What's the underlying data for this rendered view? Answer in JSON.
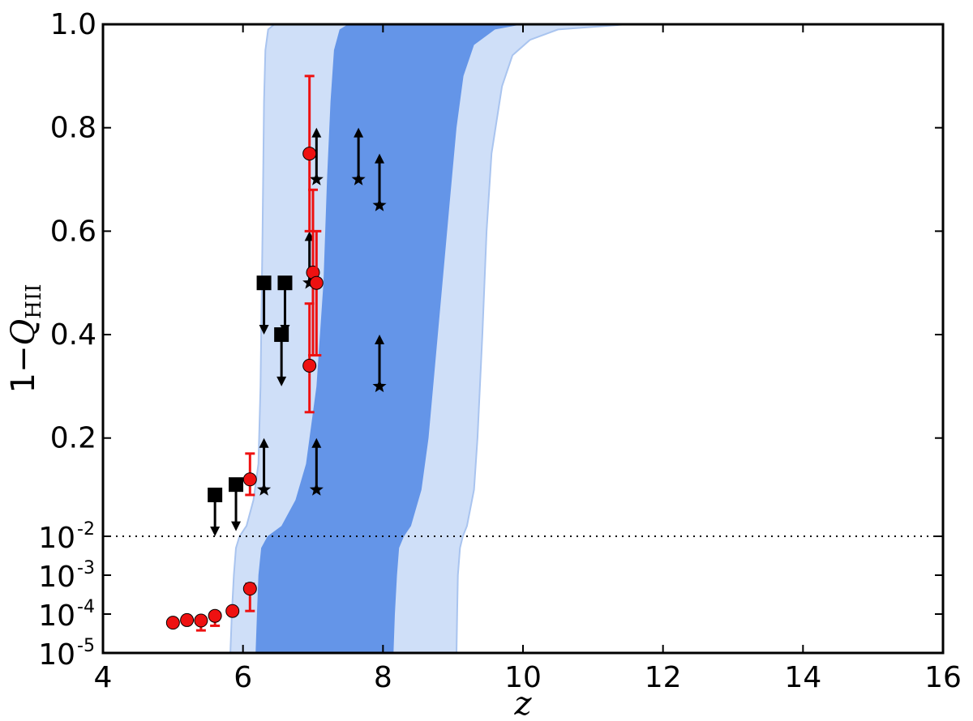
{
  "chart_data": {
    "type": "scatter",
    "xlabel": "z",
    "ylabel": {
      "prefix": "1−",
      "var": "Q",
      "sub": "HII"
    },
    "xlim": [
      4,
      16
    ],
    "upper_ylim": [
      0.01,
      1.0
    ],
    "lower_ylim_log": [
      -5,
      -2
    ],
    "x_ticks": [
      4,
      6,
      8,
      10,
      12,
      14,
      16
    ],
    "y_ticks_linear": [
      0.2,
      0.4,
      0.6,
      0.8,
      1.0
    ],
    "y_ticks_linear_labels": [
      "0.2",
      "0.4",
      "0.6",
      "0.8",
      "1.0"
    ],
    "y_ticks_log": [
      {
        "value": -2,
        "base": "10",
        "exp": "-2"
      },
      {
        "value": -3,
        "base": "10",
        "exp": "-3"
      },
      {
        "value": -4,
        "base": "10",
        "exp": "-4"
      },
      {
        "value": -5,
        "base": "10",
        "exp": "-5"
      }
    ],
    "threshold_line": {
      "y": 0.01,
      "style": "dotted"
    },
    "bands": {
      "light": {
        "color": "#cfdff8",
        "edge_color": "#a9c4ef",
        "left_edge": [
          [
            5.82,
            1e-05
          ],
          [
            5.84,
            0.0001
          ],
          [
            5.87,
            0.001
          ],
          [
            5.9,
            0.005
          ],
          [
            5.95,
            0.01
          ],
          [
            6.05,
            0.03
          ],
          [
            6.15,
            0.08
          ],
          [
            6.22,
            0.15
          ],
          [
            6.25,
            0.3
          ],
          [
            6.28,
            0.6
          ],
          [
            6.3,
            0.85
          ],
          [
            6.32,
            0.95
          ],
          [
            6.36,
            0.99
          ],
          [
            6.45,
            1.0
          ]
        ],
        "right_edge": [
          [
            9.05,
            1e-05
          ],
          [
            9.06,
            0.0001
          ],
          [
            9.07,
            0.001
          ],
          [
            9.1,
            0.005
          ],
          [
            9.14,
            0.01
          ],
          [
            9.2,
            0.03
          ],
          [
            9.3,
            0.1
          ],
          [
            9.35,
            0.2
          ],
          [
            9.42,
            0.4
          ],
          [
            9.48,
            0.6
          ],
          [
            9.55,
            0.75
          ],
          [
            9.7,
            0.88
          ],
          [
            9.85,
            0.94
          ],
          [
            10.1,
            0.97
          ],
          [
            10.5,
            0.99
          ],
          [
            11.5,
            1.0
          ]
        ]
      },
      "dark": {
        "color": "#6495e8",
        "left_edge": [
          [
            6.18,
            1e-05
          ],
          [
            6.2,
            0.0001
          ],
          [
            6.22,
            0.001
          ],
          [
            6.26,
            0.005
          ],
          [
            6.35,
            0.01
          ],
          [
            6.55,
            0.03
          ],
          [
            6.75,
            0.08
          ],
          [
            6.9,
            0.15
          ],
          [
            7.05,
            0.3
          ],
          [
            7.15,
            0.5
          ],
          [
            7.2,
            0.7
          ],
          [
            7.25,
            0.85
          ],
          [
            7.3,
            0.95
          ],
          [
            7.38,
            0.99
          ],
          [
            7.5,
            1.0
          ]
        ],
        "right_edge": [
          [
            8.15,
            1e-05
          ],
          [
            8.17,
            0.0001
          ],
          [
            8.2,
            0.001
          ],
          [
            8.23,
            0.005
          ],
          [
            8.3,
            0.01
          ],
          [
            8.4,
            0.03
          ],
          [
            8.55,
            0.1
          ],
          [
            8.65,
            0.2
          ],
          [
            8.75,
            0.35
          ],
          [
            8.85,
            0.5
          ],
          [
            8.95,
            0.65
          ],
          [
            9.05,
            0.8
          ],
          [
            9.15,
            0.9
          ],
          [
            9.3,
            0.96
          ],
          [
            9.6,
            0.99
          ],
          [
            10.0,
            1.0
          ]
        ]
      }
    },
    "red_points": [
      {
        "x": 5.0,
        "y": 6e-05,
        "ylo": 6e-05,
        "yhi": 6e-05
      },
      {
        "x": 5.2,
        "y": 7e-05,
        "ylo": 7e-05,
        "yhi": 7e-05
      },
      {
        "x": 5.4,
        "y": 6.8e-05,
        "ylo": 3.8e-05,
        "yhi": 8e-05
      },
      {
        "x": 5.6,
        "y": 9e-05,
        "ylo": 5e-05,
        "yhi": 0.00011
      },
      {
        "x": 5.85,
        "y": 0.00012,
        "ylo": 0.00012,
        "yhi": 0.00012
      },
      {
        "x": 6.1,
        "y": 0.00045,
        "ylo": 0.00012,
        "yhi": 0.0006
      },
      {
        "x": 6.1,
        "y": 0.12,
        "ylo": 0.09,
        "yhi": 0.17
      },
      {
        "x": 6.95,
        "y": 0.75,
        "ylo": 0.6,
        "yhi": 0.9
      },
      {
        "x": 7.0,
        "y": 0.52,
        "ylo": 0.36,
        "yhi": 0.68
      },
      {
        "x": 7.05,
        "y": 0.5,
        "ylo": 0.36,
        "yhi": 0.6
      },
      {
        "x": 6.95,
        "y": 0.34,
        "ylo": 0.25,
        "yhi": 0.46
      }
    ],
    "square_upper_limits": [
      {
        "x": 5.6,
        "y": 0.09,
        "to": 0.01
      },
      {
        "x": 5.9,
        "y": 0.11,
        "to": 0.02
      },
      {
        "x": 6.3,
        "y": 0.5,
        "to": 0.4
      },
      {
        "x": 6.6,
        "y": 0.5,
        "to": 0.4
      },
      {
        "x": 6.55,
        "y": 0.4,
        "to": 0.3
      }
    ],
    "star_lower_limits": [
      {
        "x": 6.3,
        "y": 0.1,
        "to": 0.2
      },
      {
        "x": 6.95,
        "y": 0.5,
        "to": 0.6
      },
      {
        "x": 7.05,
        "y": 0.7,
        "to": 0.8
      },
      {
        "x": 7.05,
        "y": 0.1,
        "to": 0.2
      },
      {
        "x": 7.65,
        "y": 0.7,
        "to": 0.8
      },
      {
        "x": 7.95,
        "y": 0.65,
        "to": 0.75
      },
      {
        "x": 7.95,
        "y": 0.3,
        "to": 0.4
      }
    ],
    "colors": {
      "red": "#ee1111",
      "black": "#000000"
    }
  }
}
